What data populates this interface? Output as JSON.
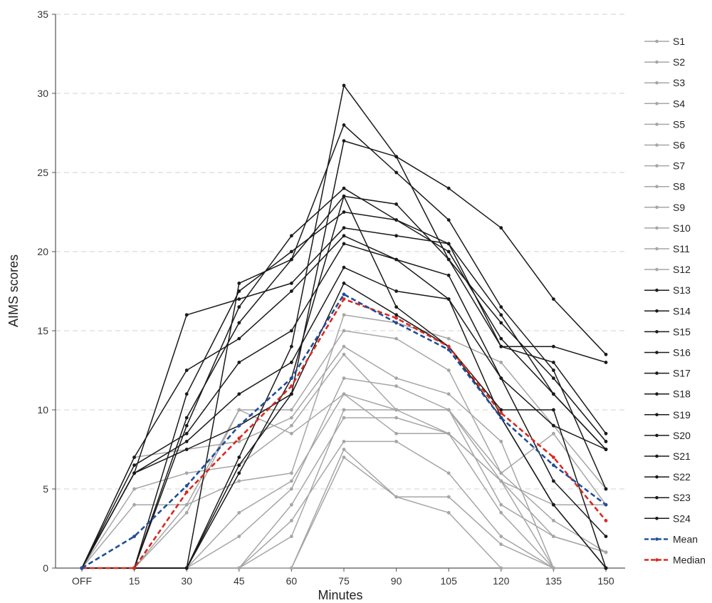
{
  "chart_data": {
    "type": "line",
    "title": "",
    "xlabel": "Minutes",
    "ylabel": "AIMS scores",
    "categories": [
      "OFF",
      "15",
      "30",
      "45",
      "60",
      "75",
      "90",
      "105",
      "120",
      "135",
      "150"
    ],
    "ylim": [
      0,
      35
    ],
    "yticks": [
      0,
      5,
      10,
      15,
      20,
      25,
      30,
      35
    ],
    "grid": "horizontal dashed",
    "legend_position": "right",
    "colors": {
      "light": "#a6a6a6",
      "dark": "#1a1a1a",
      "mean": "#1f4e99",
      "median": "#d62b1f"
    },
    "series": [
      {
        "name": "S1",
        "group": "light",
        "values": [
          0,
          0,
          4,
          10,
          10,
          15,
          14.5,
          12.5,
          6,
          8.5,
          4
        ]
      },
      {
        "name": "S2",
        "group": "light",
        "values": [
          0,
          5,
          6,
          6.5,
          9,
          13.5,
          10,
          10,
          5.5,
          4,
          4
        ]
      },
      {
        "name": "S3",
        "group": "light",
        "values": [
          0,
          7,
          7.5,
          8,
          9.5,
          14,
          12,
          11,
          8,
          0,
          0
        ]
      },
      {
        "name": "S4",
        "group": "light",
        "values": [
          0,
          4,
          4,
          5.5,
          6,
          16,
          15.5,
          14.5,
          13,
          9,
          5
        ]
      },
      {
        "name": "S5",
        "group": "light",
        "values": [
          0,
          0,
          0,
          3.5,
          5.5,
          11,
          10,
          8.5,
          5.5,
          0,
          0
        ]
      },
      {
        "name": "S6",
        "group": "light",
        "values": [
          0,
          0,
          0,
          2,
          5,
          12,
          11.5,
          10,
          6,
          3,
          1
        ]
      },
      {
        "name": "S7",
        "group": "light",
        "values": [
          0,
          0,
          0,
          0,
          2,
          10,
          10,
          10,
          4,
          2,
          1
        ]
      },
      {
        "name": "S8",
        "group": "light",
        "values": [
          0,
          0,
          0,
          0,
          4,
          9.5,
          9.5,
          8.5,
          3.5,
          0,
          0
        ]
      },
      {
        "name": "S9",
        "group": "light",
        "values": [
          0,
          0,
          0,
          0,
          3,
          8,
          8,
          6,
          2,
          0,
          0
        ]
      },
      {
        "name": "S10",
        "group": "light",
        "values": [
          0,
          0,
          0,
          0,
          0,
          7.5,
          4.5,
          4.5,
          1.5,
          0,
          0
        ]
      },
      {
        "name": "S11",
        "group": "light",
        "values": [
          0,
          0,
          0,
          0,
          0,
          7,
          4.5,
          3.5,
          0,
          0,
          0
        ]
      },
      {
        "name": "S12",
        "group": "light",
        "values": [
          0,
          0,
          3.5,
          10,
          8.5,
          11,
          8.5,
          8.5,
          5.5,
          2,
          1
        ]
      },
      {
        "name": "S13",
        "group": "dark",
        "values": [
          0,
          6,
          7.5,
          9,
          11,
          18,
          16,
          14,
          10,
          10,
          0
        ]
      },
      {
        "name": "S14",
        "group": "dark",
        "values": [
          0,
          6,
          8,
          11,
          13,
          19,
          17.5,
          17,
          12,
          9,
          7.5
        ]
      },
      {
        "name": "S15",
        "group": "dark",
        "values": [
          0,
          6.5,
          8.5,
          13,
          15,
          20.5,
          19.5,
          18.5,
          12,
          5.5,
          2
        ]
      },
      {
        "name": "S16",
        "group": "dark",
        "values": [
          0,
          7,
          12.5,
          14.5,
          17.5,
          21,
          19.5,
          17,
          9.5,
          4,
          0
        ]
      },
      {
        "name": "S17",
        "group": "dark",
        "values": [
          0,
          6,
          16,
          17,
          18,
          21.5,
          21,
          20.5,
          14,
          13,
          8.5
        ]
      },
      {
        "name": "S18",
        "group": "dark",
        "values": [
          0,
          0,
          11,
          17.5,
          20,
          22.5,
          22,
          20,
          14.5,
          11,
          7.5
        ]
      },
      {
        "name": "S19",
        "group": "dark",
        "values": [
          0,
          0,
          9.5,
          15.5,
          19.5,
          23.5,
          23,
          19.5,
          15.5,
          12,
          8
        ]
      },
      {
        "name": "S20",
        "group": "dark",
        "values": [
          0,
          0,
          9,
          16.5,
          21,
          24,
          22,
          20.5,
          16,
          11,
          7.5
        ]
      },
      {
        "name": "S21",
        "group": "dark",
        "values": [
          0,
          0,
          0,
          18,
          19.5,
          28,
          25,
          22,
          16.5,
          12.5,
          5
        ]
      },
      {
        "name": "S22",
        "group": "dark",
        "values": [
          0,
          0,
          0,
          7,
          14,
          30.5,
          26,
          24,
          21.5,
          17,
          13.5
        ]
      },
      {
        "name": "S23",
        "group": "dark",
        "values": [
          0,
          0,
          0,
          6.5,
          11,
          27,
          26,
          19.5,
          14,
          14,
          13
        ]
      },
      {
        "name": "S24",
        "group": "dark",
        "values": [
          0,
          0,
          0,
          6,
          12,
          23.5,
          16.5,
          14,
          9.5,
          4,
          0
        ]
      },
      {
        "name": "Mean",
        "group": "mean",
        "dashed": true,
        "values": [
          0,
          2,
          5.2,
          9,
          12,
          17.3,
          15.5,
          13.8,
          9.5,
          6.5,
          4
        ]
      },
      {
        "name": "Median",
        "group": "median",
        "dashed": true,
        "values": [
          0,
          0,
          4.8,
          8.2,
          11.5,
          17,
          15.8,
          14,
          9.8,
          7,
          3
        ]
      }
    ]
  }
}
